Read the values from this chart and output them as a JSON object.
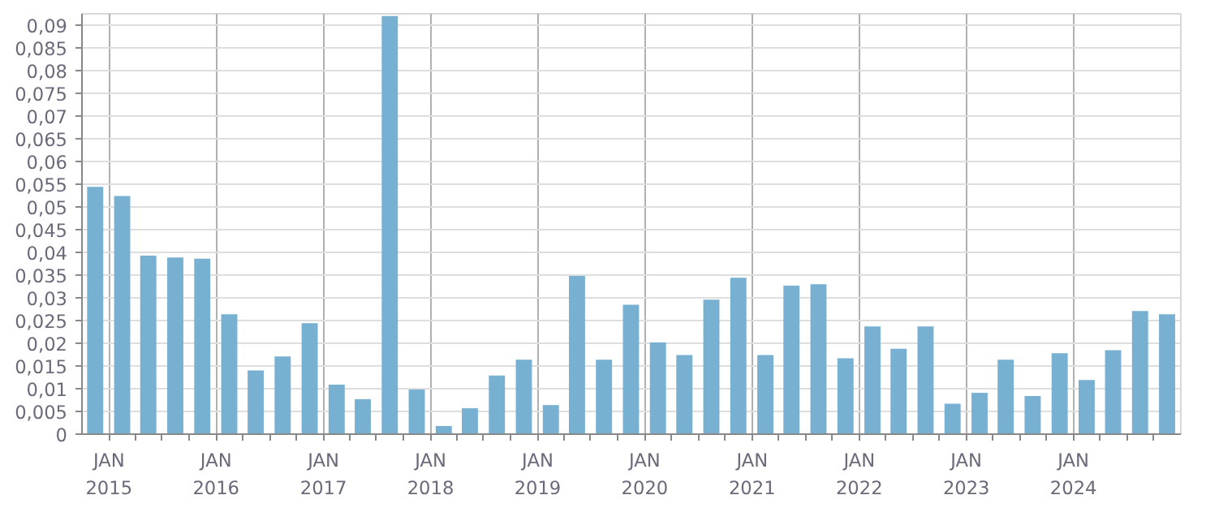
{
  "chart_data": {
    "type": "bar",
    "x": [
      "2014-11-15",
      "2015-02-15",
      "2015-05-15",
      "2015-08-15",
      "2015-11-15",
      "2016-02-15",
      "2016-05-15",
      "2016-08-15",
      "2016-11-15",
      "2017-02-15",
      "2017-05-15",
      "2017-08-15",
      "2017-11-15",
      "2018-02-15",
      "2018-05-15",
      "2018-08-15",
      "2018-11-15",
      "2019-02-15",
      "2019-05-15",
      "2019-08-15",
      "2019-11-15",
      "2020-02-15",
      "2020-05-15",
      "2020-08-15",
      "2020-11-15",
      "2021-02-15",
      "2021-05-15",
      "2021-08-15",
      "2021-11-15",
      "2022-02-15",
      "2022-05-15",
      "2022-08-15",
      "2022-11-15",
      "2023-02-15",
      "2023-05-15",
      "2023-08-15",
      "2023-11-15",
      "2024-02-15",
      "2024-05-15",
      "2024-08-15",
      "2024-11-15"
    ],
    "values": [
      0.0544,
      0.0524,
      0.0393,
      0.0389,
      0.0386,
      0.0264,
      0.014,
      0.0171,
      0.0244,
      0.0109,
      0.0077,
      0.092,
      0.0098,
      0.0018,
      0.0057,
      0.0129,
      0.0164,
      0.0064,
      0.0348,
      0.0164,
      0.0285,
      0.0202,
      0.0174,
      0.0296,
      0.0344,
      0.0174,
      0.0327,
      0.033,
      0.0167,
      0.0237,
      0.0188,
      0.0237,
      0.0067,
      0.0091,
      0.0164,
      0.0084,
      0.0178,
      0.0119,
      0.0185,
      0.0271,
      0.0264
    ],
    "color": "#78b0d2",
    "xlim": [
      "2014-10-01",
      "2025-01-01"
    ],
    "xticks": [
      {
        "value": "2015-01-01",
        "label": "JAN\n2015"
      },
      {
        "value": "2015-04-01",
        "label": null
      },
      {
        "value": "2015-07-01",
        "label": null
      },
      {
        "value": "2015-10-01",
        "label": null
      },
      {
        "value": "2016-01-01",
        "label": "JAN\n2016"
      },
      {
        "value": "2016-04-01",
        "label": null
      },
      {
        "value": "2016-07-01",
        "label": null
      },
      {
        "value": "2016-10-01",
        "label": null
      },
      {
        "value": "2017-01-01",
        "label": "JAN\n2017"
      },
      {
        "value": "2017-04-01",
        "label": null
      },
      {
        "value": "2017-07-01",
        "label": null
      },
      {
        "value": "2017-10-01",
        "label": null
      },
      {
        "value": "2018-01-01",
        "label": "JAN\n2018"
      },
      {
        "value": "2018-04-01",
        "label": null
      },
      {
        "value": "2018-07-01",
        "label": null
      },
      {
        "value": "2018-10-01",
        "label": null
      },
      {
        "value": "2019-01-01",
        "label": "JAN\n2019"
      },
      {
        "value": "2019-04-01",
        "label": null
      },
      {
        "value": "2019-07-01",
        "label": null
      },
      {
        "value": "2019-10-01",
        "label": null
      },
      {
        "value": "2020-01-01",
        "label": "JAN\n2020"
      },
      {
        "value": "2020-04-01",
        "label": null
      },
      {
        "value": "2020-07-01",
        "label": null
      },
      {
        "value": "2020-10-01",
        "label": null
      },
      {
        "value": "2021-01-01",
        "label": "JAN\n2021"
      },
      {
        "value": "2021-04-01",
        "label": null
      },
      {
        "value": "2021-07-01",
        "label": null
      },
      {
        "value": "2021-10-01",
        "label": null
      },
      {
        "value": "2022-01-01",
        "label": "JAN\n2022"
      },
      {
        "value": "2022-04-01",
        "label": null
      },
      {
        "value": "2022-07-01",
        "label": null
      },
      {
        "value": "2022-10-01",
        "label": null
      },
      {
        "value": "2023-01-01",
        "label": "JAN\n2023"
      },
      {
        "value": "2023-04-01",
        "label": null
      },
      {
        "value": "2023-07-01",
        "label": null
      },
      {
        "value": "2023-10-01",
        "label": null
      },
      {
        "value": "2024-01-01",
        "label": "JAN\n2024"
      },
      {
        "value": "2024-04-01",
        "label": null
      },
      {
        "value": "2024-07-01",
        "label": null
      },
      {
        "value": "2024-10-01",
        "label": null
      }
    ],
    "ylim": [
      0,
      0.0925
    ],
    "yticks": [
      0,
      {
        "value": 0.005,
        "label": "0,005"
      },
      {
        "value": 0.01,
        "label": "0,01"
      },
      {
        "value": 0.015,
        "label": "0,015"
      },
      {
        "value": 0.02,
        "label": "0,02"
      },
      {
        "value": 0.025,
        "label": "0,025"
      },
      {
        "value": 0.03,
        "label": "0,03"
      },
      {
        "value": 0.035,
        "label": "0,035"
      },
      {
        "value": 0.04,
        "label": "0,04"
      },
      {
        "value": 0.045,
        "label": "0,045"
      },
      {
        "value": 0.05,
        "label": "0,05"
      },
      {
        "value": 0.055,
        "label": "0,055"
      },
      {
        "value": 0.06,
        "label": "0,06"
      },
      {
        "value": 0.065,
        "label": "0,065"
      },
      {
        "value": 0.07,
        "label": "0,07"
      },
      {
        "value": 0.075,
        "label": "0,075"
      },
      {
        "value": 0.08,
        "label": "0,08"
      },
      {
        "value": 0.085,
        "label": "0,085"
      },
      {
        "value": 0.09,
        "label": "0,09"
      }
    ],
    "grid": true
  }
}
